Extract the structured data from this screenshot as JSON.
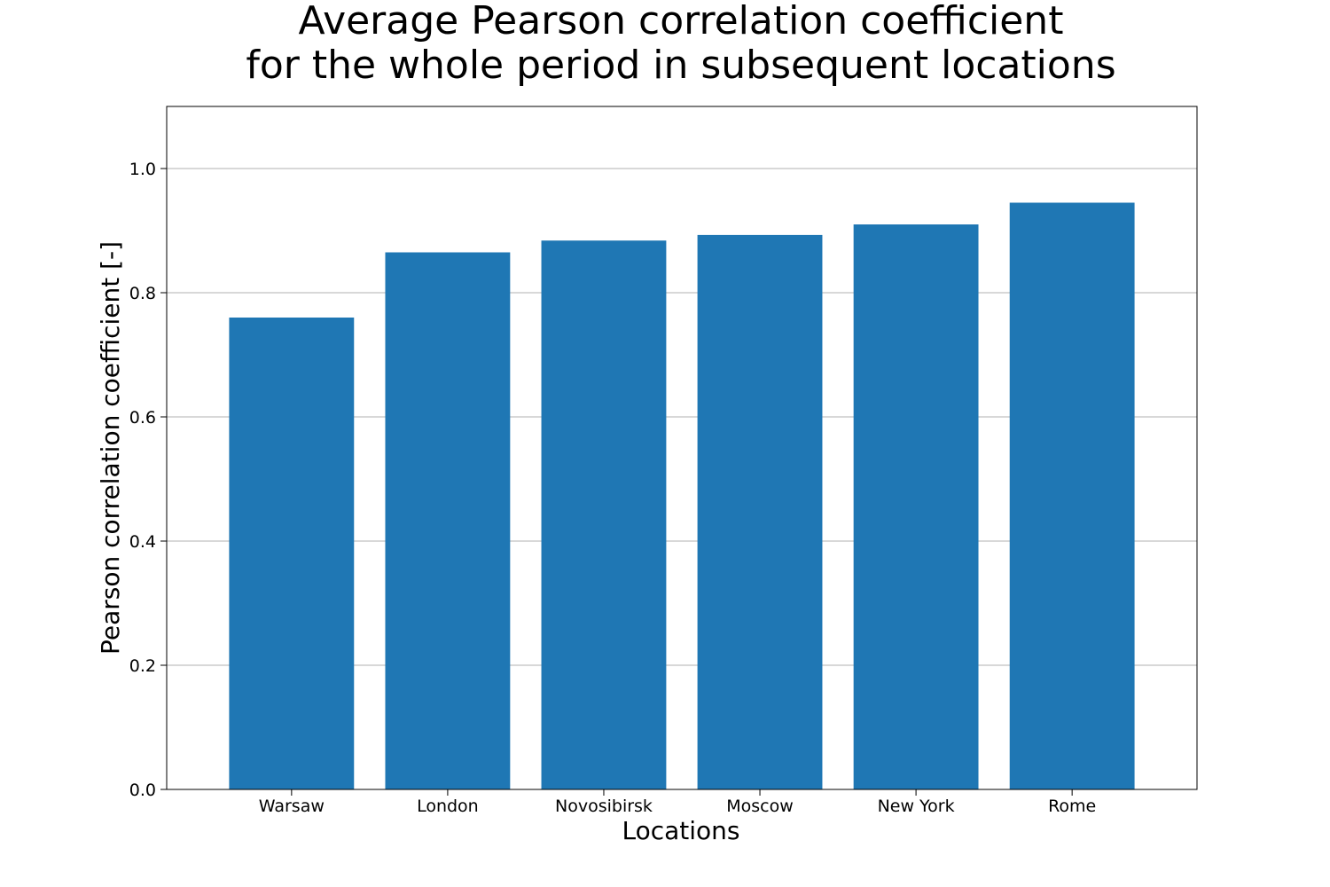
{
  "chart_data": {
    "type": "bar",
    "title_lines": [
      "Average Pearson correlation coefficient",
      "for the whole period in subsequent locations"
    ],
    "xlabel": "Locations",
    "ylabel": "Pearson correlation coefficient [-]",
    "categories": [
      "Warsaw",
      "London",
      "Novosibirsk",
      "Moscow",
      "New York",
      "Rome"
    ],
    "values": [
      0.76,
      0.865,
      0.884,
      0.893,
      0.91,
      0.945
    ],
    "ylim": [
      0,
      1.1
    ],
    "yticks": [
      "0.0",
      "0.2",
      "0.4",
      "0.6",
      "0.8",
      "1.0"
    ],
    "grid": "y",
    "legend": "none",
    "bar_color": "#1f77b4",
    "grid_color": "#b0b0b0"
  }
}
